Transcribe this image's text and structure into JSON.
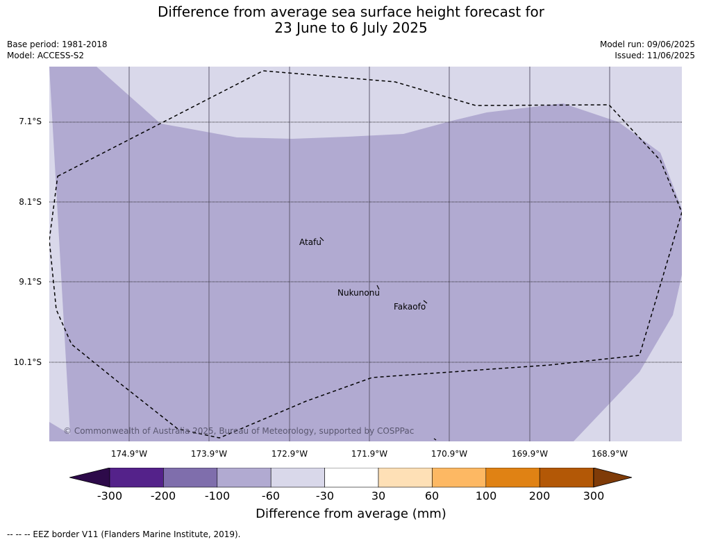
{
  "title_line1": "Difference from average sea surface height forecast for",
  "title_line2": "23 June to 6 July 2025",
  "base_period": "Base period: 1981-2018",
  "model": "Model: ACCESS-S2",
  "model_run": "Model run: 09/06/2025",
  "issued": "Issued: 11/06/2025",
  "latitudes": [
    "7.1°S",
    "8.1°S",
    "9.1°S",
    "10.1°S"
  ],
  "longitudes": [
    "174.9°W",
    "173.9°W",
    "172.9°W",
    "171.9°W",
    "170.9°W",
    "169.9°W",
    "168.9°W"
  ],
  "places": [
    {
      "name": "Atafu"
    },
    {
      "name": "Nukunonu"
    },
    {
      "name": "Fakaofo"
    }
  ],
  "credit": "© Commonwealth of Australia 2025, Bureau of Meteorology, supported by COSPPac",
  "colorbar": {
    "title": "Difference from average (mm)",
    "ticks": [
      "-300",
      "-200",
      "-100",
      "-60",
      "-30",
      "30",
      "60",
      "100",
      "200",
      "300"
    ],
    "colors": {
      "below_min": "#2d0a4a",
      "bins": [
        "#54228a",
        "#7f6eac",
        "#b1aad1",
        "#d9d8ea",
        "#ffffff",
        "#fee0b6",
        "#fdb863",
        "#e08214",
        "#b35806"
      ],
      "above_max": "#7f3b08"
    }
  },
  "map_colors": {
    "band_neg60_to_neg30": "#d9d8ea",
    "band_neg100_to_neg60": "#b1aad1"
  },
  "legend_note": "--  --  -- EEZ border V11 (Flanders Marine Institute, 2019)."
}
